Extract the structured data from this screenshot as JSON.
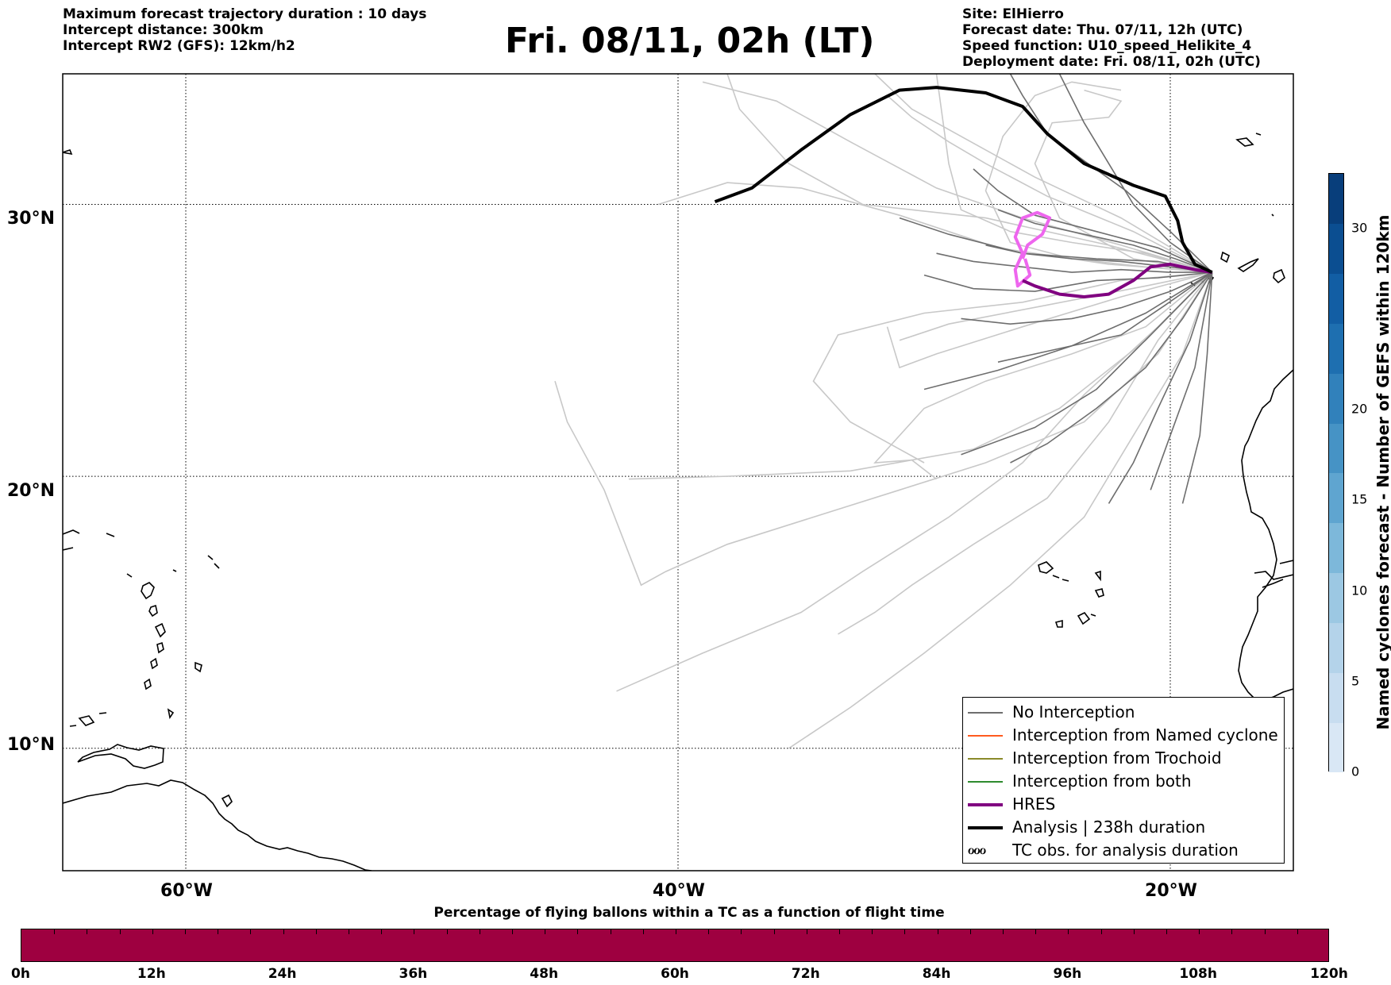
{
  "header": {
    "info_left": [
      "Maximum forecast trajectory duration : 10 days",
      "Intercept distance: 300km",
      "Intercept RW2 (GFS):  12km/h2"
    ],
    "title": "Fri. 08/11, 02h (LT)",
    "info_right": [
      "Site: ElHierro",
      "Forecast date: Thu. 07/11, 12h (UTC)",
      "Speed function: U10_speed_Helikite_4",
      "Deployment date: Fri. 08/11, 02h (UTC)"
    ]
  },
  "map": {
    "extent": {
      "lon_min": -65,
      "lon_max": -15,
      "lat_min": 5.5,
      "lat_max": 34.8
    },
    "lat_gridlines": [
      10,
      20,
      30
    ],
    "lon_gridlines": [
      -60,
      -40,
      -20
    ],
    "lat_labels": [
      "10°N",
      "20°N",
      "30°N"
    ],
    "lon_labels": [
      "60°W",
      "40°W",
      "20°W"
    ],
    "launch_site": {
      "lon": -18.3,
      "lat": 27.5
    },
    "colors": {
      "no_interception": "#6e6e6e",
      "no_interception_light": "#c8c8c8",
      "named_cyclone": "#ff5b1f",
      "trochoid": "#8a8a2a",
      "both": "#2e8b2e",
      "hres": "#800080",
      "hres_loop": "#ee66ee",
      "analysis": "#000000",
      "coast": "#000000"
    }
  },
  "trajectories": {
    "analysis": [
      [
        -18.3,
        27.5
      ],
      [
        -19.0,
        27.8
      ],
      [
        -19.5,
        28.6
      ],
      [
        -19.7,
        29.4
      ],
      [
        -20.2,
        30.3
      ],
      [
        -21.5,
        30.7
      ],
      [
        -23.5,
        31.5
      ],
      [
        -25.0,
        32.6
      ],
      [
        -26.0,
        33.6
      ],
      [
        -27.5,
        34.1
      ],
      [
        -29.5,
        34.3
      ],
      [
        -31.0,
        34.2
      ],
      [
        -33.0,
        33.3
      ],
      [
        -35.0,
        32.0
      ],
      [
        -37.0,
        30.6
      ],
      [
        -38.5,
        30.1
      ]
    ],
    "hres": [
      [
        -18.3,
        27.5
      ],
      [
        -19.0,
        27.6
      ],
      [
        -20.0,
        27.8
      ],
      [
        -20.8,
        27.7
      ],
      [
        -21.5,
        27.2
      ],
      [
        -22.5,
        26.7
      ],
      [
        -23.5,
        26.6
      ],
      [
        -24.5,
        26.7
      ],
      [
        -25.5,
        27.0
      ],
      [
        -26.0,
        27.2
      ]
    ],
    "hres_loop": [
      [
        -26.0,
        28.0
      ],
      [
        -25.8,
        28.5
      ],
      [
        -25.2,
        28.9
      ],
      [
        -24.9,
        29.5
      ],
      [
        -25.4,
        29.7
      ],
      [
        -26.0,
        29.5
      ],
      [
        -26.3,
        28.8
      ],
      [
        -26.0,
        28.2
      ],
      [
        -26.3,
        27.6
      ],
      [
        -26.2,
        27.0
      ],
      [
        -25.7,
        27.4
      ],
      [
        -25.9,
        28.0
      ]
    ],
    "ensemble_dark": [
      [
        [
          -18.3,
          27.5
        ],
        [
          -20.0,
          27.7
        ],
        [
          -22.0,
          27.9
        ],
        [
          -24.0,
          28.0
        ],
        [
          -26.0,
          28.2
        ],
        [
          -27.5,
          28.5
        ]
      ],
      [
        [
          -18.3,
          27.5
        ],
        [
          -20.0,
          27.5
        ],
        [
          -22.0,
          27.6
        ],
        [
          -24.0,
          27.5
        ],
        [
          -26.0,
          27.7
        ],
        [
          -28.0,
          27.9
        ],
        [
          -29.5,
          28.2
        ]
      ],
      [
        [
          -18.3,
          27.5
        ],
        [
          -19.8,
          28.0
        ],
        [
          -21.5,
          28.5
        ],
        [
          -23.5,
          28.9
        ],
        [
          -25.5,
          29.3
        ],
        [
          -27.0,
          29.8
        ]
      ],
      [
        [
          -18.3,
          27.5
        ],
        [
          -20.0,
          26.8
        ],
        [
          -22.0,
          26.2
        ],
        [
          -24.0,
          25.8
        ],
        [
          -26.5,
          25.6
        ],
        [
          -28.5,
          25.8
        ]
      ],
      [
        [
          -18.3,
          27.5
        ],
        [
          -20.2,
          26.3
        ],
        [
          -22.0,
          25.2
        ],
        [
          -24.5,
          24.7
        ],
        [
          -27.0,
          24.2
        ]
      ],
      [
        [
          -18.3,
          27.5
        ],
        [
          -19.5,
          25.8
        ],
        [
          -21.0,
          24.0
        ],
        [
          -23.0,
          22.5
        ],
        [
          -25.0,
          21.2
        ],
        [
          -26.5,
          20.5
        ]
      ],
      [
        [
          -18.3,
          27.5
        ],
        [
          -19.2,
          25.0
        ],
        [
          -20.5,
          22.5
        ],
        [
          -21.5,
          20.5
        ],
        [
          -22.5,
          19.0
        ]
      ],
      [
        [
          -18.3,
          27.5
        ],
        [
          -19.0,
          24.0
        ],
        [
          -20.0,
          21.5
        ],
        [
          -20.8,
          19.5
        ]
      ],
      [
        [
          -18.3,
          27.5
        ],
        [
          -18.5,
          24.5
        ],
        [
          -18.8,
          21.5
        ],
        [
          -19.5,
          19.0
        ]
      ],
      [
        [
          -18.3,
          27.5
        ],
        [
          -20.5,
          27.3
        ],
        [
          -23.0,
          27.2
        ],
        [
          -25.5,
          26.8
        ],
        [
          -28.0,
          26.9
        ],
        [
          -30.0,
          27.4
        ]
      ],
      [
        [
          -18.3,
          27.5
        ],
        [
          -20.0,
          28.6
        ],
        [
          -21.5,
          30.0
        ],
        [
          -22.5,
          31.5
        ],
        [
          -23.5,
          33.0
        ],
        [
          -24.5,
          34.8
        ]
      ],
      [
        [
          -18.3,
          27.5
        ],
        [
          -20.0,
          29.0
        ],
        [
          -21.8,
          30.5
        ],
        [
          -23.5,
          31.6
        ],
        [
          -25.0,
          32.6
        ],
        [
          -26.0,
          34.0
        ],
        [
          -26.5,
          34.8
        ]
      ],
      [
        [
          -18.3,
          27.5
        ],
        [
          -20.5,
          28.4
        ],
        [
          -23.0,
          29.0
        ],
        [
          -25.5,
          29.6
        ],
        [
          -27.0,
          30.5
        ],
        [
          -28.0,
          31.3
        ]
      ],
      [
        [
          -18.3,
          27.5
        ],
        [
          -20.5,
          27.9
        ],
        [
          -23.0,
          28.0
        ],
        [
          -26.0,
          28.2
        ],
        [
          -29.0,
          28.9
        ],
        [
          -31.0,
          29.5
        ]
      ],
      [
        [
          -18.3,
          27.5
        ],
        [
          -21.0,
          26.0
        ],
        [
          -24.0,
          24.8
        ],
        [
          -27.0,
          23.9
        ],
        [
          -30.0,
          23.2
        ]
      ],
      [
        [
          -18.3,
          27.5
        ],
        [
          -20.8,
          25.2
        ],
        [
          -23.0,
          23.2
        ],
        [
          -25.5,
          21.8
        ],
        [
          -28.5,
          20.8
        ]
      ]
    ],
    "ensemble_light": [
      [
        [
          -18.3,
          27.5
        ],
        [
          -21.0,
          27.0
        ],
        [
          -25.0,
          26.3
        ],
        [
          -29.0,
          25.6
        ],
        [
          -31.0,
          25.0
        ]
      ],
      [
        [
          -18.3,
          27.5
        ],
        [
          -22.0,
          28.5
        ],
        [
          -26.0,
          29.5
        ],
        [
          -29.5,
          30.6
        ],
        [
          -33.0,
          32.3
        ],
        [
          -36.0,
          33.8
        ],
        [
          -39.0,
          34.5
        ]
      ],
      [
        [
          -18.3,
          27.5
        ],
        [
          -22.5,
          27.8
        ],
        [
          -27.0,
          28.4
        ],
        [
          -31.0,
          29.6
        ],
        [
          -35.0,
          30.6
        ],
        [
          -38.0,
          30.8
        ],
        [
          -40.8,
          30.0
        ]
      ],
      [
        [
          -18.3,
          27.5
        ],
        [
          -22.0,
          29.5
        ],
        [
          -25.5,
          31.0
        ],
        [
          -28.5,
          32.5
        ],
        [
          -30.5,
          33.5
        ],
        [
          -32.0,
          34.8
        ]
      ],
      [
        [
          -18.3,
          27.5
        ],
        [
          -21.5,
          29.0
        ],
        [
          -25.0,
          30.3
        ],
        [
          -27.5,
          31.5
        ],
        [
          -29.0,
          32.3
        ],
        [
          -30.5,
          33.2
        ],
        [
          -31.5,
          34.0
        ]
      ],
      [
        [
          -18.3,
          27.5
        ],
        [
          -21.0,
          25.5
        ],
        [
          -24.0,
          24.5
        ],
        [
          -27.5,
          23.5
        ],
        [
          -30.0,
          22.5
        ],
        [
          -31.5,
          21.0
        ],
        [
          -32.0,
          20.5
        ],
        [
          -30.5,
          20.6
        ],
        [
          -29.5,
          19.9
        ]
      ],
      [
        [
          -18.3,
          27.5
        ],
        [
          -21.0,
          25.0
        ],
        [
          -24.5,
          22.5
        ],
        [
          -28.0,
          21.0
        ],
        [
          -33.0,
          20.2
        ],
        [
          -38.0,
          20.0
        ],
        [
          -42.0,
          19.9
        ]
      ],
      [
        [
          -18.3,
          27.5
        ],
        [
          -20.5,
          25.5
        ],
        [
          -23.5,
          23.0
        ],
        [
          -26.0,
          20.5
        ],
        [
          -29.0,
          18.5
        ],
        [
          -32.5,
          16.5
        ],
        [
          -35.0,
          15.0
        ],
        [
          -39.0,
          13.5
        ],
        [
          -42.5,
          12.1
        ]
      ],
      [
        [
          -18.3,
          27.5
        ],
        [
          -19.5,
          24.5
        ],
        [
          -21.5,
          21.5
        ],
        [
          -23.5,
          18.5
        ],
        [
          -26.5,
          16.0
        ],
        [
          -30.0,
          13.5
        ],
        [
          -33.0,
          11.5
        ],
        [
          -35.5,
          10.0
        ]
      ],
      [
        [
          -18.3,
          27.5
        ],
        [
          -20.5,
          24.5
        ],
        [
          -23.5,
          22.0
        ],
        [
          -27.5,
          20.5
        ],
        [
          -31.0,
          19.5
        ],
        [
          -34.5,
          18.5
        ],
        [
          -38.0,
          17.5
        ],
        [
          -40.5,
          16.5
        ],
        [
          -41.5,
          16.0
        ],
        [
          -43.0,
          19.5
        ],
        [
          -44.5,
          22.0
        ],
        [
          -45.0,
          23.5
        ]
      ],
      [
        [
          -18.3,
          27.5
        ],
        [
          -20.5,
          25.0
        ],
        [
          -22.5,
          22.0
        ],
        [
          -25.0,
          19.2
        ],
        [
          -28.0,
          17.5
        ],
        [
          -30.5,
          16.0
        ],
        [
          -32.0,
          15.0
        ],
        [
          -33.5,
          14.2
        ]
      ],
      [
        [
          -18.3,
          27.5
        ],
        [
          -22.0,
          27.2
        ],
        [
          -26.0,
          26.4
        ],
        [
          -30.0,
          26.0
        ],
        [
          -33.5,
          25.2
        ],
        [
          -34.5,
          23.5
        ],
        [
          -33.0,
          22.0
        ],
        [
          -31.0,
          21.0
        ],
        [
          -30.0,
          20.5
        ]
      ],
      [
        [
          -18.3,
          27.5
        ],
        [
          -22.5,
          28.5
        ],
        [
          -27.5,
          29.5
        ],
        [
          -32.5,
          30.0
        ],
        [
          -35.5,
          31.5
        ],
        [
          -37.5,
          33.5
        ],
        [
          -38.0,
          34.8
        ]
      ],
      [
        [
          -18.3,
          27.5
        ],
        [
          -21.0,
          28.2
        ],
        [
          -24.0,
          28.6
        ],
        [
          -26.5,
          29.0
        ],
        [
          -28.5,
          29.8
        ],
        [
          -29.0,
          31.5
        ],
        [
          -29.5,
          34.8
        ]
      ],
      [
        [
          -18.3,
          27.5
        ],
        [
          -21.5,
          28.0
        ],
        [
          -24.5,
          29.5
        ],
        [
          -25.5,
          31.5
        ],
        [
          -24.8,
          33.0
        ],
        [
          -22.5,
          33.2
        ],
        [
          -22.0,
          33.8
        ],
        [
          -23.5,
          34.2
        ]
      ],
      [
        [
          -18.3,
          27.5
        ],
        [
          -21.0,
          27.7
        ],
        [
          -24.0,
          28.0
        ],
        [
          -26.5,
          28.6
        ],
        [
          -27.5,
          30.5
        ],
        [
          -26.8,
          32.5
        ],
        [
          -25.5,
          34.0
        ],
        [
          -24.0,
          34.5
        ],
        [
          -22.0,
          34.2
        ]
      ],
      [
        [
          -18.3,
          27.5
        ],
        [
          -22.0,
          26.6
        ],
        [
          -26.0,
          25.5
        ],
        [
          -29.5,
          24.5
        ],
        [
          -31.0,
          24.0
        ],
        [
          -31.5,
          25.5
        ]
      ]
    ]
  },
  "legend": {
    "items": [
      {
        "label": "No Interception",
        "color": "#6e6e6e",
        "width": 1.5
      },
      {
        "label": "Interception from Named cyclone",
        "color": "#ff5b1f",
        "width": 1.5
      },
      {
        "label": "Interception from Trochoid",
        "color": "#8a8a2a",
        "width": 1.5
      },
      {
        "label": "Interception from both",
        "color": "#2e8b2e",
        "width": 1.5
      },
      {
        "label": "HRES",
        "color": "#800080",
        "width": 4
      },
      {
        "label": "Analysis | 238h duration",
        "color": "#000000",
        "width": 4
      }
    ],
    "tc_obs_label": "TC obs. for analysis duration",
    "tc_obs_glyph": "ℴℴℴ"
  },
  "colorbar_vertical": {
    "label": "Named cyclones forecast - Number of GEFS within 120km",
    "min": 0,
    "max": 33,
    "ticks": [
      "0",
      "5",
      "10",
      "15",
      "20",
      "30"
    ],
    "tick_values": [
      0,
      5,
      10,
      15,
      20,
      30
    ],
    "colors": [
      "#d9e7f5",
      "#c8ddf0",
      "#b4d3ea",
      "#9cc8e3",
      "#7db8da",
      "#5fa5d0",
      "#4693c5",
      "#3181bb",
      "#1e6fb0",
      "#125ea4",
      "#0b4e91",
      "#083e7b"
    ]
  },
  "colorbar_horizontal": {
    "title": "Percentage of flying ballons within a TC as a function of flight time",
    "ticks": [
      "0h",
      "12h",
      "24h",
      "36h",
      "48h",
      "60h",
      "72h",
      "84h",
      "96h",
      "108h",
      "120h"
    ],
    "color": "#9e0040"
  }
}
